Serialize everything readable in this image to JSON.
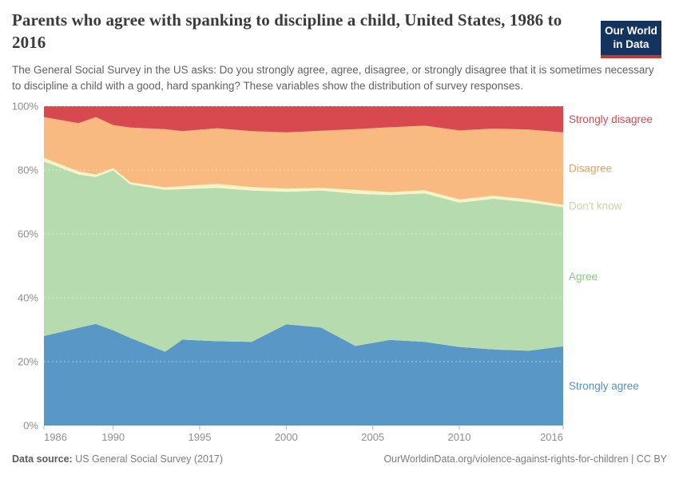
{
  "header": {
    "title": "Parents who agree with spanking to discipline a child, United States, 1986 to 2016",
    "subtitle": "The General Social Survey in the US asks: Do you strongly agree, agree, disagree, or strongly disagree that it is sometimes necessary to discipline a child with a good, hard spanking? These variables show the distribution of survey responses.",
    "logo": {
      "line1": "Our World",
      "line2": "in Data",
      "bg_color": "#15335f",
      "stripe_color": "#c8372d"
    }
  },
  "footer": {
    "source_label": "Data source:",
    "source_value": " US General Social Survey (2017)",
    "credit": "OurWorldinData.org/violence-against-rights-for-children | CC BY"
  },
  "chart_data": {
    "type": "area",
    "stacked": true,
    "x": [
      1986,
      1988,
      1989,
      1990,
      1991,
      1993,
      1994,
      1996,
      1998,
      2000,
      2002,
      2004,
      2006,
      2008,
      2010,
      2012,
      2014,
      2016
    ],
    "series": [
      {
        "id": "strongly-agree",
        "name": "Strongly agree",
        "color": "#5897c6",
        "label_color": "#4f93c8",
        "values": [
          28.0,
          30.6,
          31.8,
          29.8,
          27.4,
          23.1,
          26.9,
          26.4,
          26.2,
          31.7,
          30.7,
          24.9,
          26.8,
          26.2,
          24.6,
          23.8,
          23.4,
          24.8
        ]
      },
      {
        "id": "agree",
        "name": "Agree",
        "color": "#b5dbae",
        "label_color": "#8bc981",
        "values": [
          54.7,
          48.0,
          46.0,
          50.1,
          48.1,
          50.7,
          47.1,
          48.0,
          47.4,
          41.5,
          42.9,
          47.7,
          45.4,
          46.5,
          45.2,
          47.2,
          46.5,
          43.6
        ]
      },
      {
        "id": "dont-know",
        "name": "Don't know",
        "color": "#f8f4c6",
        "label_color": "#ccd5a2",
        "values": [
          1.1,
          1.0,
          0.8,
          0.7,
          0.7,
          0.8,
          1.0,
          1.3,
          1.1,
          1.0,
          0.8,
          1.2,
          0.9,
          1.0,
          1.0,
          1.0,
          0.9,
          0.7
        ]
      },
      {
        "id": "disagree",
        "name": "Disagree",
        "color": "#f8ba80",
        "label_color": "#e0a262",
        "values": [
          12.8,
          15.1,
          18.0,
          13.5,
          17.1,
          18.2,
          17.2,
          17.4,
          17.5,
          17.6,
          17.9,
          19.0,
          20.3,
          20.2,
          21.6,
          21.0,
          21.9,
          22.7
        ]
      },
      {
        "id": "strongly-disagree",
        "name": "Strongly disagree",
        "color": "#d7484f",
        "label_color": "#d7484f",
        "values": [
          3.4,
          5.3,
          3.4,
          5.9,
          6.7,
          7.2,
          7.8,
          6.9,
          7.8,
          8.2,
          7.7,
          7.2,
          6.6,
          6.1,
          7.6,
          7.0,
          7.3,
          8.2
        ]
      }
    ],
    "xlim": [
      1986,
      2016
    ],
    "ylim": [
      0,
      100
    ],
    "x_ticks": [
      1986,
      1990,
      1995,
      2000,
      2005,
      2010,
      2016
    ],
    "y_ticks": [
      0,
      20,
      40,
      60,
      80,
      100
    ],
    "y_gridlines": [
      20,
      40,
      60,
      80,
      100
    ],
    "y_tick_suffix": "%",
    "grid": "dashed",
    "grid_color": "rgba(255,255,255,0.5)",
    "tick_color": "#b3b3b3",
    "legend_position": "right"
  }
}
